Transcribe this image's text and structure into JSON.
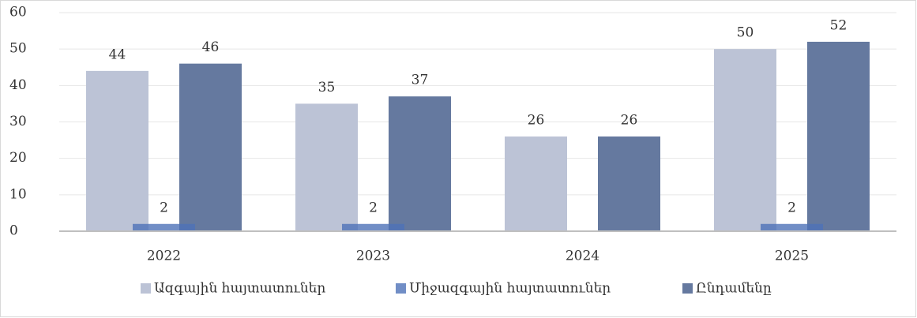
{
  "chart_data": {
    "type": "bar",
    "categories": [
      "2022",
      "2023",
      "2024",
      "2025"
    ],
    "series": [
      {
        "name": "Ազգային հայտատուներ",
        "color": "#bcc3d6",
        "values": [
          44,
          35,
          26,
          50
        ]
      },
      {
        "name": "Միջազգային հայտատուներ",
        "color": "#4e72b8",
        "values": [
          2,
          2,
          null,
          2
        ]
      },
      {
        "name": "Ընդամենը",
        "color": "#65799f",
        "values": [
          46,
          37,
          26,
          52
        ]
      }
    ],
    "ylim": [
      0,
      60
    ],
    "yticks": [
      0,
      10,
      20,
      30,
      40,
      50,
      60
    ],
    "grid": true,
    "legend": "bottom"
  }
}
